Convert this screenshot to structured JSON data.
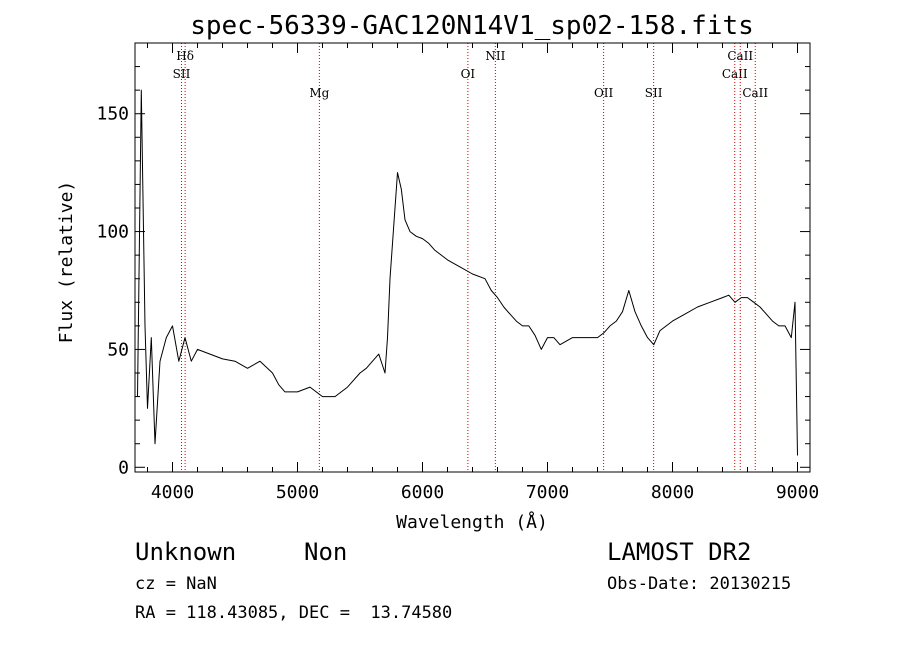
{
  "chart_data": {
    "type": "line",
    "title": "spec-56339-GAC120N14V1_sp02-158.fits",
    "xlabel": "Wavelength (Å)",
    "ylabel": "Flux (relative)",
    "xlim": [
      3700,
      9100
    ],
    "ylim": [
      -2,
      180
    ],
    "xticks": [
      4000,
      5000,
      6000,
      7000,
      8000,
      9000
    ],
    "xtick_labels": [
      "4000",
      "5000",
      "6000",
      "7000",
      "8000",
      "9000"
    ],
    "yticks": [
      0,
      50,
      100,
      150
    ],
    "ytick_labels": [
      "0",
      "50",
      "100",
      "150"
    ],
    "grid": false,
    "line_color": "#000000",
    "marker_color": "#cc0000",
    "series": [
      {
        "x": [
          3720,
          3750,
          3780,
          3800,
          3830,
          3860,
          3900,
          3950,
          4000,
          4050,
          4100,
          4150,
          4200,
          4300,
          4400,
          4500,
          4600,
          4700,
          4800,
          4850,
          4900,
          5000,
          5100,
          5200,
          5300,
          5400,
          5500,
          5550,
          5600,
          5650,
          5700,
          5720,
          5740,
          5760,
          5780,
          5800,
          5830,
          5860,
          5900,
          5950,
          6000,
          6050,
          6100,
          6150,
          6200,
          6300,
          6400,
          6500,
          6550,
          6600,
          6650,
          6700,
          6750,
          6800,
          6850,
          6900,
          6950,
          7000,
          7050,
          7100,
          7200,
          7300,
          7400,
          7450,
          7500,
          7550,
          7600,
          7650,
          7700,
          7750,
          7800,
          7850,
          7900,
          8000,
          8100,
          8200,
          8300,
          8400,
          8450,
          8500,
          8550,
          8600,
          8650,
          8700,
          8750,
          8800,
          8850,
          8900,
          8950,
          8980,
          9000
        ],
        "y": [
          30,
          160,
          60,
          25,
          55,
          10,
          45,
          55,
          60,
          45,
          55,
          45,
          50,
          48,
          46,
          45,
          42,
          45,
          40,
          35,
          32,
          32,
          34,
          30,
          30,
          34,
          40,
          42,
          45,
          48,
          40,
          55,
          80,
          95,
          110,
          125,
          118,
          105,
          100,
          98,
          97,
          95,
          92,
          90,
          88,
          85,
          82,
          80,
          75,
          72,
          68,
          65,
          62,
          60,
          60,
          56,
          50,
          55,
          55,
          52,
          55,
          55,
          55,
          57,
          60,
          62,
          66,
          75,
          66,
          60,
          55,
          52,
          58,
          62,
          65,
          68,
          70,
          72,
          73,
          70,
          72,
          72,
          70,
          68,
          65,
          62,
          60,
          60,
          55,
          70,
          5
        ]
      }
    ],
    "line_markers": [
      {
        "x": 4101,
        "label": "Hδ",
        "row": 0
      },
      {
        "x": 4072,
        "label": "SII",
        "row": 1
      },
      {
        "x": 5175,
        "label": "Mg",
        "row": 2
      },
      {
        "x": 6363,
        "label": "OI",
        "row": 1
      },
      {
        "x": 6583,
        "label": "NII",
        "row": 0
      },
      {
        "x": 7449,
        "label": "OII",
        "row": 2
      },
      {
        "x": 7849,
        "label": "SII",
        "row": 2
      },
      {
        "x": 8498,
        "label": "CaII",
        "row": 1
      },
      {
        "x": 8542,
        "label": "CaII",
        "row": 0
      },
      {
        "x": 8662,
        "label": "CaII",
        "row": 2
      }
    ]
  },
  "info": {
    "classification": "Unknown",
    "subclass": "Non",
    "cz": "cz = NaN",
    "coords": "RA = 118.43085, DEC =  13.74580",
    "survey": "LAMOST DR2",
    "obs_date": "Obs-Date: 20130215"
  }
}
